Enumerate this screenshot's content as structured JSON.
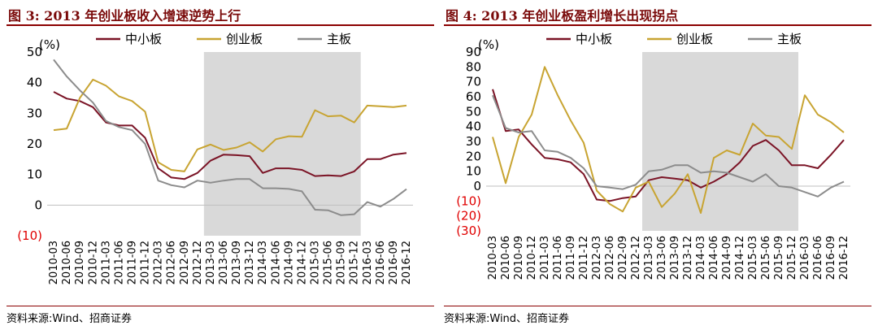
{
  "figures": [
    {
      "title": "图 3:  2013 年创业板收入增速逆势上行",
      "source": "资料来源:Wind、招商证券",
      "chart_data": {
        "type": "line",
        "unit_label": "(%)",
        "ylim": [
          -10,
          50
        ],
        "yticks": [
          -10,
          0,
          10,
          20,
          30,
          40,
          50
        ],
        "ytick_labels": [
          "(10)",
          "0",
          "10",
          "20",
          "30",
          "40",
          "50"
        ],
        "negative_color": "#e00000",
        "x": [
          "2010-03",
          "2010-06",
          "2010-09",
          "2010-12",
          "2011-03",
          "2011-06",
          "2011-09",
          "2011-12",
          "2012-03",
          "2012-06",
          "2012-09",
          "2012-12",
          "2013-03",
          "2013-06",
          "2013-09",
          "2013-12",
          "2014-03",
          "2014-06",
          "2014-09",
          "2014-12",
          "2015-03",
          "2015-06",
          "2015-09",
          "2015-12",
          "2016-03",
          "2016-06",
          "2016-09",
          "2016-12"
        ],
        "shaded_range": [
          "2013-03",
          "2015-12"
        ],
        "shade_color": "#d9d9d9",
        "legend_position": "top",
        "series": [
          {
            "name": "中小板",
            "color": "#7b1426",
            "values": [
              37,
              34.8,
              34,
              32,
              27,
              26,
              26,
              22,
              12,
              9,
              8.5,
              10.5,
              14.5,
              16.5,
              16.3,
              16,
              10.5,
              12,
              12,
              11.5,
              9.5,
              9.7,
              9.5,
              11,
              15,
              15,
              16.5,
              17
            ]
          },
          {
            "name": "创业板",
            "color": "#c8a432",
            "values": [
              24.5,
              25,
              35,
              41,
              39,
              35.5,
              34,
              30.5,
              14,
              11.5,
              11,
              18.2,
              19.8,
              18,
              18.8,
              20.5,
              17.5,
              21.5,
              22.5,
              22.3,
              31,
              29,
              29.2,
              27,
              32.5,
              32.3,
              32,
              32.5
            ]
          },
          {
            "name": "主板",
            "color": "#8c8c8c",
            "values": [
              47.5,
              42,
              37.5,
              33.5,
              27.5,
              25.5,
              24.5,
              20,
              8,
              6.5,
              5.8,
              8,
              7.3,
              8,
              8.5,
              8.5,
              5.5,
              5.5,
              5.3,
              4.5,
              -1.5,
              -1.7,
              -3.3,
              -3,
              1,
              -0.5,
              2,
              5.2
            ]
          }
        ]
      }
    },
    {
      "title": "图 4:  2013 年创业板盈利增长出现拐点",
      "source": "资料来源:Wind、招商证券",
      "chart_data": {
        "type": "line",
        "unit_label": "(%)",
        "ylim": [
          -30,
          90
        ],
        "yticks": [
          -30,
          -20,
          -10,
          0,
          10,
          20,
          30,
          40,
          50,
          60,
          70,
          80,
          90
        ],
        "ytick_labels": [
          "(30)",
          "(20)",
          "(10)",
          "0",
          "10",
          "20",
          "30",
          "40",
          "50",
          "60",
          "70",
          "80",
          "90"
        ],
        "negative_color": "#e00000",
        "x": [
          "2010-03",
          "2010-06",
          "2010-09",
          "2010-12",
          "2011-03",
          "2011-06",
          "2011-09",
          "2011-12",
          "2012-03",
          "2012-06",
          "2012-09",
          "2012-12",
          "2013-03",
          "2013-06",
          "2013-09",
          "2013-12",
          "2014-03",
          "2014-06",
          "2014-09",
          "2014-12",
          "2015-03",
          "2015-06",
          "2015-09",
          "2015-12",
          "2016-03",
          "2016-06",
          "2016-09",
          "2016-12"
        ],
        "shaded_range": [
          "2013-03",
          "2015-12"
        ],
        "shade_color": "#d9d9d9",
        "legend_position": "top",
        "series": [
          {
            "name": "中小板",
            "color": "#7b1426",
            "values": [
              65,
              37,
              38,
              28,
              19,
              18,
              16,
              8,
              -9,
              -10,
              -8,
              -7,
              4,
              6,
              5,
              4,
              -1,
              3,
              8,
              16,
              27,
              31,
              24,
              14,
              14,
              12,
              21,
              31
            ]
          },
          {
            "name": "创业板",
            "color": "#c8a432",
            "values": [
              33,
              2,
              33,
              48,
              80,
              61,
              44,
              29,
              -3,
              -12,
              -17,
              -1,
              3,
              -14,
              -5,
              8,
              -18,
              19,
              24,
              21,
              42,
              34,
              33,
              25,
              61,
              48,
              43,
              36
            ]
          },
          {
            "name": "主板",
            "color": "#8c8c8c",
            "values": [
              61,
              39,
              36,
              37,
              24,
              23,
              19,
              12,
              0,
              -1,
              -2,
              1,
              10,
              11,
              14,
              14,
              9,
              10,
              9,
              6,
              3,
              8,
              0,
              -1,
              -4,
              -7,
              -1,
              3
            ]
          }
        ]
      }
    }
  ]
}
